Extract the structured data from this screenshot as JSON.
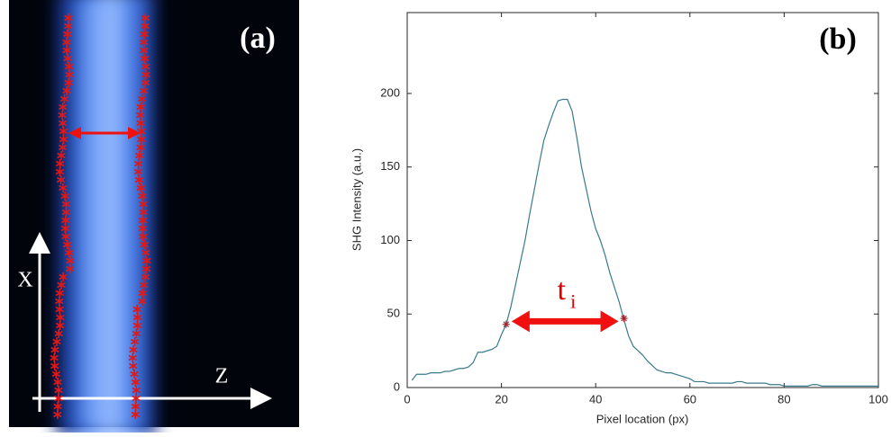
{
  "image_panel": {
    "label": "(a)",
    "vertical_axis": "X",
    "horizontal_axis": "Z"
  },
  "chart_data": {
    "type": "line",
    "panel_label": "(b)",
    "xlabel": "Pixel location (px)",
    "ylabel": "SHG Intensity (a.u.)",
    "x": [
      1,
      2,
      3,
      4,
      5,
      6,
      7,
      8,
      9,
      10,
      11,
      12,
      13,
      14,
      15,
      16,
      17,
      18,
      19,
      20,
      21,
      22,
      23,
      24,
      25,
      26,
      27,
      28,
      29,
      30,
      31,
      32,
      33,
      34,
      35,
      36,
      37,
      38,
      39,
      40,
      41,
      42,
      43,
      44,
      45,
      46,
      47,
      48,
      49,
      50,
      51,
      52,
      53,
      54,
      55,
      56,
      57,
      58,
      59,
      60,
      61,
      62,
      63,
      64,
      65,
      66,
      67,
      68,
      69,
      70,
      71,
      72,
      73,
      74,
      75,
      76,
      77,
      78,
      79,
      80,
      81,
      82,
      83,
      84,
      85,
      86,
      87,
      88,
      89,
      90,
      91,
      92,
      93,
      94,
      95,
      96,
      97,
      98,
      99,
      100
    ],
    "values": [
      5,
      9,
      9,
      9,
      10,
      10,
      10,
      11,
      11,
      12,
      13,
      13,
      14,
      17,
      24,
      24,
      25,
      26,
      28,
      36,
      43,
      55,
      70,
      85,
      100,
      118,
      135,
      152,
      168,
      178,
      187,
      195,
      196,
      196,
      188,
      170,
      150,
      135,
      120,
      108,
      100,
      90,
      78,
      68,
      58,
      46,
      35,
      28,
      25,
      22,
      18,
      15,
      12,
      11,
      10,
      10,
      9,
      8,
      7,
      6,
      4,
      4,
      4,
      3,
      3,
      3,
      3,
      3,
      3,
      4,
      4,
      3,
      3,
      3,
      3,
      3,
      2,
      2,
      2,
      1,
      1,
      1,
      1,
      1,
      1,
      2,
      2,
      1,
      1,
      1,
      1,
      1,
      1,
      1,
      1,
      1,
      1,
      1,
      1,
      1
    ],
    "color": "#3a7a8c",
    "markers": {
      "x": [
        21,
        46
      ],
      "y": [
        43,
        47
      ],
      "color": "#a0262e"
    },
    "annotation": {
      "text": "t",
      "subscript": "i",
      "color": "#e00000"
    },
    "xlim": [
      0,
      100
    ],
    "xticks": [
      0,
      20,
      40,
      60,
      80,
      100
    ],
    "ylim": [
      0,
      255
    ],
    "yticks": [
      0,
      50,
      100,
      150,
      200
    ]
  }
}
